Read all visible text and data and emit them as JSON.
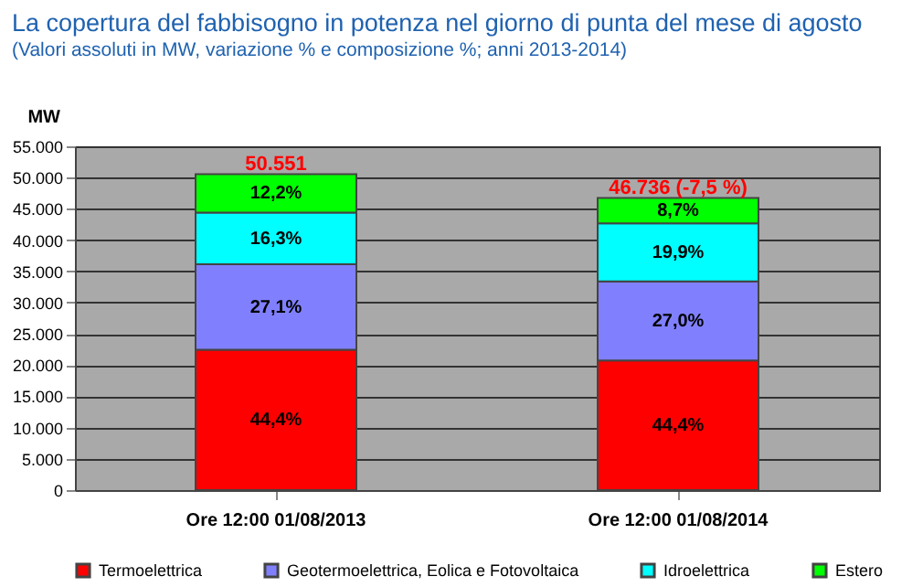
{
  "chart_data": {
    "type": "bar",
    "stacked": true,
    "title": "La copertura del fabbisogno in potenza nel giorno di punta del mese di agosto",
    "subtitle": "(Valori assoluti in MW, variazione % e composizione %; anni 2013-2014)",
    "ylabel": "MW",
    "categories": [
      "Ore  12:00  01/08/2013",
      "Ore  12:00  01/08/2014"
    ],
    "series": [
      {
        "name": "Termoelettrica",
        "color": "#ff0000",
        "values": [
          22445,
          20751
        ]
      },
      {
        "name": "Geotermoelettrica, Eolica e Fotovoltaica",
        "color": "#8080ff",
        "values": [
          13699,
          12619
        ]
      },
      {
        "name": "Idroelettrica",
        "color": "#00ffff",
        "values": [
          8240,
          9300
        ]
      },
      {
        "name": "Estero",
        "color": "#00ff00",
        "values": [
          6167,
          4066
        ]
      }
    ],
    "annotations": [
      "44,4%",
      "44,4%",
      "27,1%",
      "27,0%",
      "16,3%",
      "19,9%",
      "12,2%",
      "8,7%"
    ],
    "totals": [
      "50.551",
      "46.736 (-7,5 %)"
    ],
    "ylim": [
      0,
      55000
    ],
    "yticks": [
      {
        "value": 0,
        "label": "0"
      },
      {
        "value": 5000,
        "label": "5.000"
      },
      {
        "value": 10000,
        "label": "10.000"
      },
      {
        "value": 15000,
        "label": "15.000"
      },
      {
        "value": 20000,
        "label": "20.000"
      },
      {
        "value": 25000,
        "label": "25.000"
      },
      {
        "value": 30000,
        "label": "30.000"
      },
      {
        "value": 35000,
        "label": "35.000"
      },
      {
        "value": 40000,
        "label": "40.000"
      },
      {
        "value": 45000,
        "label": "45.000"
      },
      {
        "value": 50000,
        "label": "50.000"
      },
      {
        "value": 55000,
        "label": "55.000"
      }
    ],
    "grid": "y",
    "legend": "bottom"
  }
}
